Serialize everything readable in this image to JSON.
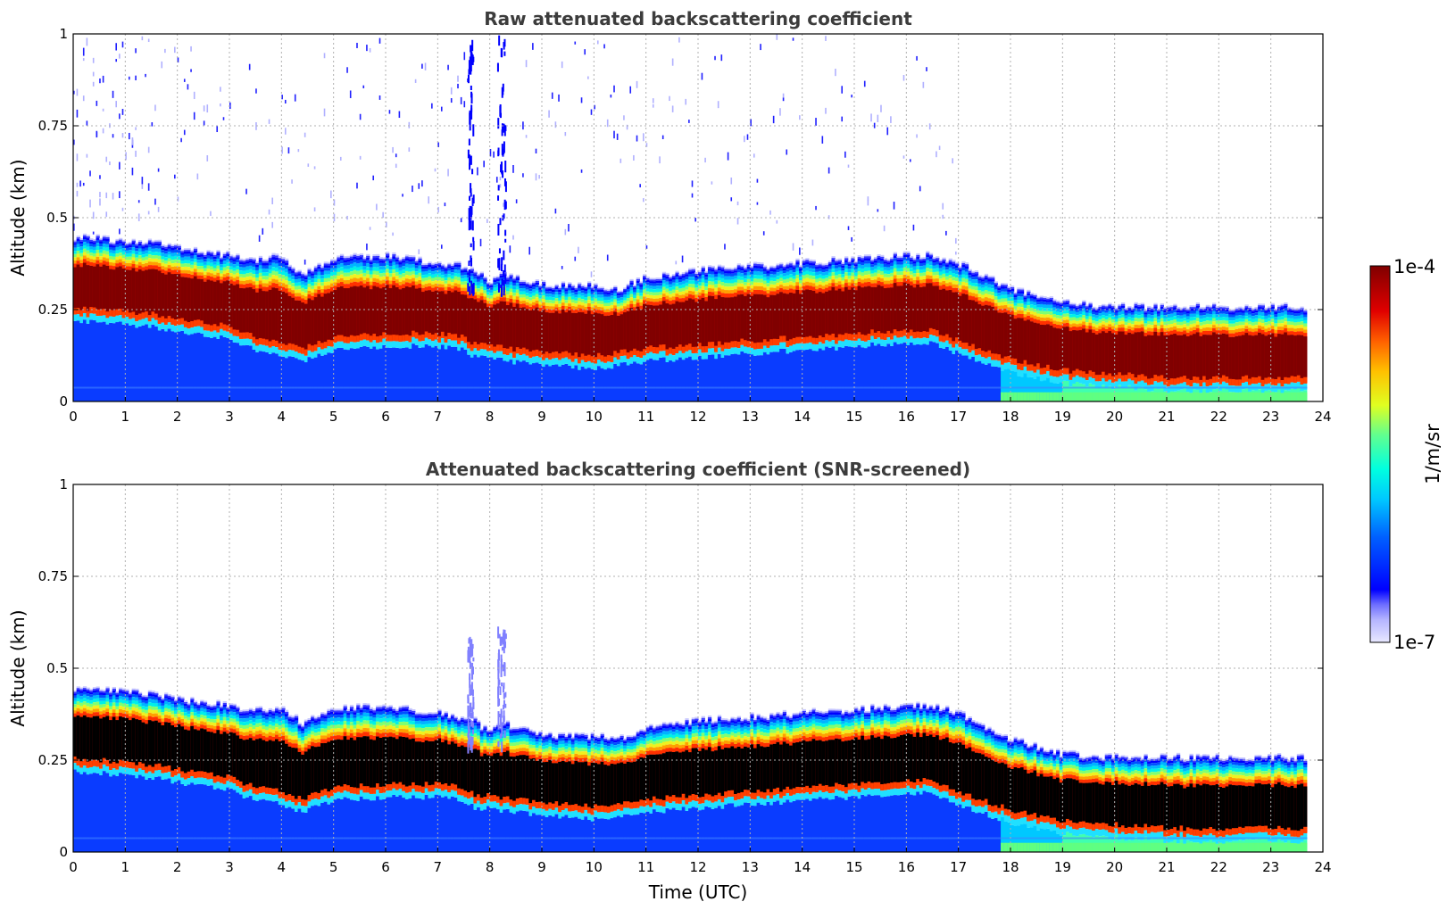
{
  "chart_data": [
    {
      "type": "heatmap",
      "title": "Raw attenuated backscattering coefficient",
      "xlabel": "",
      "ylabel": "Altitude (km)",
      "xlim": [
        0,
        24
      ],
      "ylim": [
        0,
        1
      ],
      "x_ticks": [
        "0",
        "1",
        "2",
        "3",
        "4",
        "5",
        "6",
        "7",
        "8",
        "9",
        "10",
        "11",
        "12",
        "13",
        "14",
        "15",
        "16",
        "17",
        "18",
        "19",
        "20",
        "21",
        "22",
        "23",
        "24"
      ],
      "y_ticks": [
        "0",
        "0.25",
        "0.5",
        "0.75",
        "1"
      ],
      "grid": true,
      "data_end_time": 23.7,
      "layer_profile": {
        "time": [
          0,
          1,
          1.7,
          2,
          3,
          3.5,
          4,
          4.4,
          5,
          6,
          7,
          7.5,
          7.7,
          8,
          8.3,
          9,
          10,
          10.5,
          11,
          12,
          13,
          14,
          15,
          16,
          16.5,
          17,
          18,
          19,
          20,
          21,
          22,
          23,
          23.7
        ],
        "top_km": [
          0.42,
          0.41,
          0.4,
          0.39,
          0.37,
          0.36,
          0.37,
          0.32,
          0.36,
          0.37,
          0.35,
          0.34,
          0.33,
          0.3,
          0.32,
          0.29,
          0.29,
          0.28,
          0.31,
          0.33,
          0.34,
          0.35,
          0.36,
          0.37,
          0.37,
          0.35,
          0.28,
          0.24,
          0.23,
          0.23,
          0.23,
          0.23,
          0.23
        ],
        "bottom_km": [
          0.22,
          0.21,
          0.2,
          0.19,
          0.17,
          0.14,
          0.13,
          0.11,
          0.14,
          0.15,
          0.15,
          0.14,
          0.12,
          0.12,
          0.11,
          0.1,
          0.09,
          0.1,
          0.11,
          0.12,
          0.13,
          0.14,
          0.15,
          0.16,
          0.16,
          0.13,
          0.08,
          0.05,
          0.04,
          0.03,
          0.03,
          0.03,
          0.03
        ]
      }
    },
    {
      "type": "heatmap",
      "title": "Attenuated backscattering coefficient (SNR-screened)",
      "xlabel": "Time (UTC)",
      "ylabel": "Altitude (km)",
      "xlim": [
        0,
        24
      ],
      "ylim": [
        0,
        1
      ],
      "x_ticks": [
        "0",
        "1",
        "2",
        "3",
        "4",
        "5",
        "6",
        "7",
        "8",
        "9",
        "10",
        "11",
        "12",
        "13",
        "14",
        "15",
        "16",
        "17",
        "18",
        "19",
        "20",
        "21",
        "22",
        "23",
        "24"
      ],
      "y_ticks": [
        "0",
        "0.25",
        "0.5",
        "0.75",
        "1"
      ],
      "grid": true,
      "data_end_time": 23.7,
      "saturated_core_color": "#000000"
    }
  ],
  "colorbar": {
    "label": "1/m/sr",
    "max_label": "1e-4",
    "min_label": "1e-7",
    "max_value": 0.0001,
    "min_value": 1e-07,
    "scale": "log",
    "colormap": [
      "#e8e8ff",
      "#b4b4ff",
      "#6e6eff",
      "#0000ff",
      "#0060ff",
      "#00c8ff",
      "#00ffe0",
      "#60ff90",
      "#e0ff20",
      "#ffc000",
      "#ff6000",
      "#e00000",
      "#800000"
    ]
  }
}
